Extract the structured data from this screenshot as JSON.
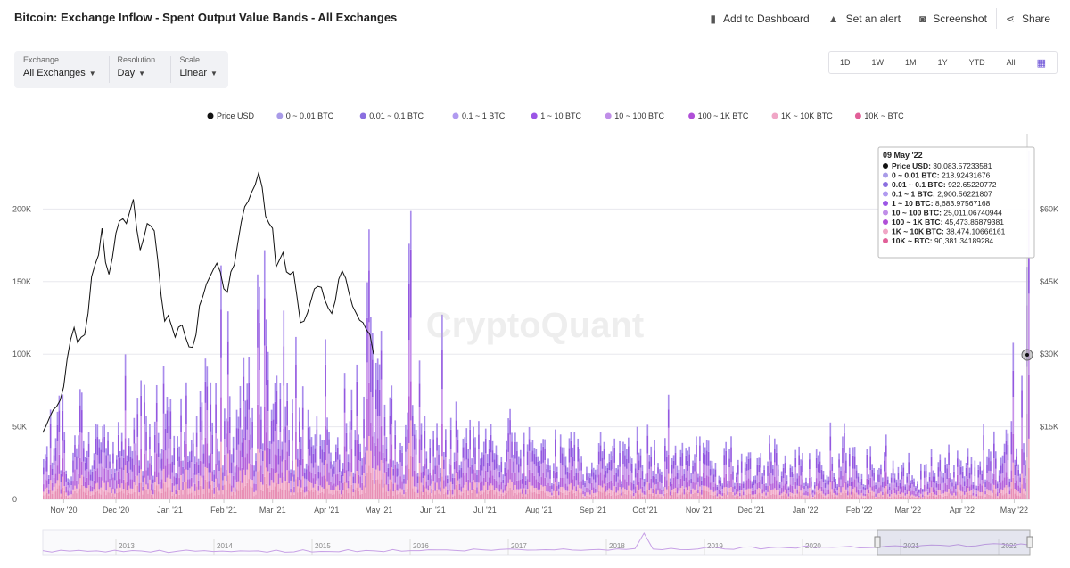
{
  "header": {
    "title": "Bitcoin: Exchange Inflow - Spent Output Value Bands - All Exchanges",
    "actions": [
      {
        "label": "Add to Dashboard",
        "icon": "dashboard-icon"
      },
      {
        "label": "Set an alert",
        "icon": "bell-icon"
      },
      {
        "label": "Screenshot",
        "icon": "camera-icon"
      },
      {
        "label": "Share",
        "icon": "share-icon"
      }
    ]
  },
  "controls": [
    {
      "label": "Exchange",
      "value": "All Exchanges"
    },
    {
      "label": "Resolution",
      "value": "Day"
    },
    {
      "label": "Scale",
      "value": "Linear"
    }
  ],
  "ranges": [
    "1D",
    "1W",
    "1M",
    "1Y",
    "YTD",
    "All"
  ],
  "chart_data": {
    "type": "bar",
    "watermark": "CryptoQuant",
    "legend": [
      {
        "name": "Price USD",
        "color": "#111111"
      },
      {
        "name": "0 ~ 0.01 BTC",
        "color": "#a99be8"
      },
      {
        "name": "0.01 ~ 0.1 BTC",
        "color": "#8a6ee0"
      },
      {
        "name": "0.1 ~ 1 BTC",
        "color": "#b09af0"
      },
      {
        "name": "1 ~ 10 BTC",
        "color": "#9b55e6"
      },
      {
        "name": "10 ~ 100 BTC",
        "color": "#c08ee8"
      },
      {
        "name": "100 ~ 1K BTC",
        "color": "#b04fd8"
      },
      {
        "name": "1K ~ 10K BTC",
        "color": "#f0a6c6"
      },
      {
        "name": "10K ~ BTC",
        "color": "#e15f98"
      }
    ],
    "x_ticks": [
      "Nov '20",
      "Dec '20",
      "Jan '21",
      "Feb '21",
      "Mar '21",
      "Apr '21",
      "May '21",
      "Jun '21",
      "Jul '21",
      "Aug '21",
      "Sep '21",
      "Oct '21",
      "Nov '21",
      "Dec '21",
      "Jan '22",
      "Feb '22",
      "Mar '22",
      "Apr '22",
      "May '22"
    ],
    "y_left_ticks": [
      "0",
      "50K",
      "100K",
      "150K",
      "200K"
    ],
    "y_right_ticks": [
      "$15K",
      "$30K",
      "$45K",
      "$60K"
    ],
    "ylim_left": [
      0,
      250000
    ],
    "ylim_right": [
      0,
      75000
    ],
    "grid": true,
    "price_usd": [
      13800,
      15300,
      17000,
      18500,
      19200,
      20500,
      23300,
      29000,
      33000,
      35500,
      32400,
      33500,
      34000,
      38500,
      46000,
      48500,
      50500,
      56000,
      49000,
      46500,
      50000,
      55000,
      57500,
      58000,
      57000,
      59500,
      62000,
      55800,
      51500,
      54000,
      57000,
      56500,
      55500,
      49500,
      42000,
      36800,
      38000,
      35800,
      33500,
      35600,
      36000,
      33500,
      31500,
      31400,
      34000,
      40000,
      42000,
      44500,
      46000,
      47500,
      48800,
      47000,
      43500,
      42800,
      47000,
      48500,
      53000,
      57300,
      60500,
      61600,
      63500,
      65000,
      67500,
      64500,
      58500,
      57000,
      56000,
      48000,
      49500,
      51000,
      47000,
      46500,
      47000,
      42000,
      36500,
      36800,
      38500,
      41000,
      43500,
      44000,
      43800,
      41200,
      39500,
      38400,
      41000,
      45500,
      47200,
      45700,
      42500,
      39900,
      38500,
      37000,
      36500,
      35000,
      34000,
      30000
    ],
    "price_step_days": 2,
    "price_start": "2020-10-20",
    "bar_envelope": [
      48000,
      75000,
      52000,
      70000,
      58000,
      72000,
      60000,
      110000,
      70000,
      88000,
      62000,
      95000,
      70000,
      82000,
      65000,
      110000,
      78000,
      92000,
      72000,
      100000,
      96000,
      122000,
      88000,
      100000,
      78000,
      86000,
      74000,
      90000,
      72000,
      84000,
      66000,
      130000,
      122000,
      86000,
      78000,
      70000,
      82000,
      60000,
      74000,
      52000,
      70000,
      58000,
      64000,
      56000,
      50000,
      62000,
      48000,
      56000,
      44000,
      50000,
      48000,
      52000,
      44000,
      40000,
      48000,
      38000,
      46000,
      36000,
      50000,
      44000,
      40000,
      42000,
      48000,
      38000,
      46000,
      36000,
      44000,
      32000,
      38000,
      42000,
      34000,
      40000,
      30000,
      38000,
      32000,
      40000,
      34000,
      50000,
      38000,
      32000,
      36000,
      28000,
      34000,
      30000,
      32000,
      28000,
      30000,
      34000,
      30000,
      36000,
      32000,
      40000,
      36000,
      52000,
      60000,
      70000
    ],
    "tooltip": {
      "date": "09 May '22",
      "rows": [
        {
          "name": "Price USD",
          "value": "30,083.57233581"
        },
        {
          "name": "0 ~ 0.01 BTC",
          "value": "218.92431676"
        },
        {
          "name": "0.01 ~ 0.1 BTC",
          "value": "922.65220772"
        },
        {
          "name": "0.1 ~ 1 BTC",
          "value": "2,900.56221807"
        },
        {
          "name": "1 ~ 10 BTC",
          "value": "8,683.97567168"
        },
        {
          "name": "10 ~ 100 BTC",
          "value": "25,011.06740944"
        },
        {
          "name": "100 ~ 1K BTC",
          "value": "45,473.86879381"
        },
        {
          "name": "1K ~ 10K BTC",
          "value": "38,474.10666161"
        },
        {
          "name": "10K ~ BTC",
          "value": "90,381.34189284"
        }
      ]
    },
    "navigator_years": [
      "2013",
      "2014",
      "2015",
      "2016",
      "2017",
      "2018",
      "2019",
      "2020",
      "2021",
      "2022"
    ]
  }
}
